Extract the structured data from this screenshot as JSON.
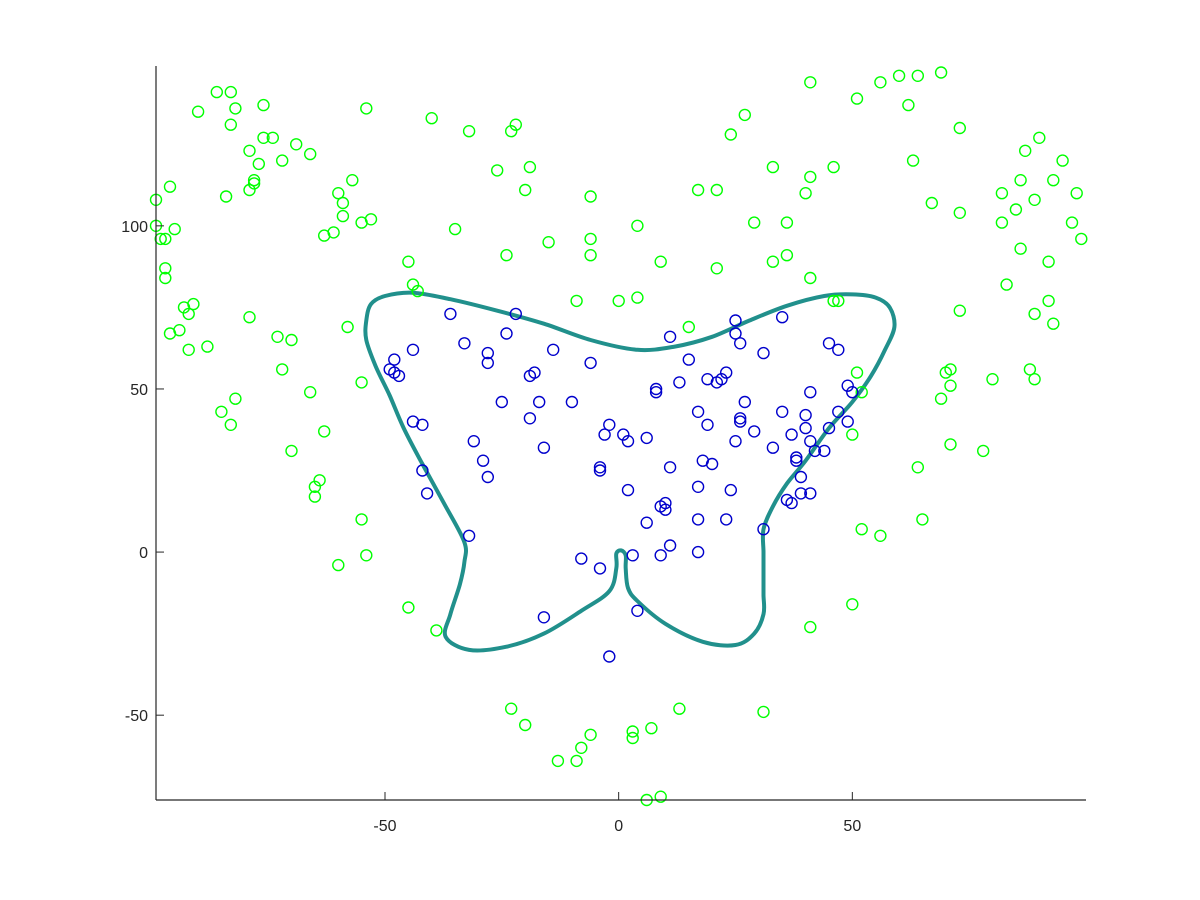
{
  "chart_data": {
    "type": "scatter",
    "title": "",
    "xlabel": "",
    "ylabel": "",
    "xlim": [
      -99,
      100
    ],
    "ylim": [
      -76,
      149
    ],
    "grid": false,
    "legend": "none",
    "xticks": [
      -50,
      0,
      50
    ],
    "yticks": [
      -50,
      0,
      50,
      100
    ],
    "xtick_labels": [
      "-50",
      "0",
      "50"
    ],
    "ytick_labels": [
      "-50",
      "0",
      "50",
      "100"
    ],
    "colors": {
      "outside": "#00ff00",
      "inside": "#0000cc",
      "boundary": "#21908c",
      "axis": "#262626"
    },
    "series": [
      {
        "marker": "circle-open",
        "color": "#00ff00",
        "points": [
          [
            -99,
            108
          ],
          [
            -99,
            100
          ],
          [
            -96,
            112
          ],
          [
            -98,
            96
          ],
          [
            -97,
            96
          ],
          [
            -95,
            99
          ],
          [
            -97,
            87
          ],
          [
            -97,
            84
          ],
          [
            -96,
            67
          ],
          [
            -94,
            68
          ],
          [
            -93,
            75
          ],
          [
            -91,
            76
          ],
          [
            -92,
            73
          ],
          [
            -92,
            62
          ],
          [
            -88,
            63
          ],
          [
            -90,
            135
          ],
          [
            -86,
            141
          ],
          [
            -83,
            141
          ],
          [
            -82,
            136
          ],
          [
            -83,
            131
          ],
          [
            -76,
            137
          ],
          [
            -76,
            127
          ],
          [
            -74,
            127
          ],
          [
            -79,
            123
          ],
          [
            -77,
            119
          ],
          [
            -72,
            120
          ],
          [
            -69,
            125
          ],
          [
            -84,
            109
          ],
          [
            -79,
            111
          ],
          [
            -78,
            113
          ],
          [
            -78,
            114
          ],
          [
            -66,
            122
          ],
          [
            -60,
            110
          ],
          [
            -59,
            107
          ],
          [
            -59,
            103
          ],
          [
            -57,
            114
          ],
          [
            -55,
            101
          ],
          [
            -53,
            102
          ],
          [
            -54,
            136
          ],
          [
            -82,
            47
          ],
          [
            -85,
            43
          ],
          [
            -83,
            39
          ],
          [
            -79,
            72
          ],
          [
            -73,
            66
          ],
          [
            -70,
            65
          ],
          [
            -72,
            56
          ],
          [
            -66,
            49
          ],
          [
            -70,
            31
          ],
          [
            -63,
            37
          ],
          [
            -65,
            20
          ],
          [
            -64,
            22
          ],
          [
            -65,
            17
          ],
          [
            -61,
            98
          ],
          [
            -63,
            97
          ],
          [
            -58,
            69
          ],
          [
            -55,
            52
          ],
          [
            -55,
            10
          ],
          [
            -54,
            -1
          ],
          [
            -60,
            -4
          ],
          [
            -45,
            -17
          ],
          [
            -39,
            -24
          ],
          [
            -43,
            80
          ],
          [
            -45,
            89
          ],
          [
            -44,
            82
          ],
          [
            -40,
            133
          ],
          [
            -32,
            129
          ],
          [
            -23,
            129
          ],
          [
            -22,
            131
          ],
          [
            -26,
            117
          ],
          [
            -19,
            118
          ],
          [
            -20,
            111
          ],
          [
            -35,
            99
          ],
          [
            -24,
            91
          ],
          [
            -15,
            95
          ],
          [
            -6,
            109
          ],
          [
            -6,
            96
          ],
          [
            -6,
            91
          ],
          [
            -9,
            77
          ],
          [
            0,
            77
          ],
          [
            4,
            78
          ],
          [
            4,
            100
          ],
          [
            9,
            89
          ],
          [
            15,
            69
          ],
          [
            17,
            111
          ],
          [
            21,
            111
          ],
          [
            21,
            87
          ],
          [
            24,
            128
          ],
          [
            27,
            134
          ],
          [
            29,
            101
          ],
          [
            33,
            118
          ],
          [
            33,
            89
          ],
          [
            36,
            101
          ],
          [
            36,
            91
          ],
          [
            40,
            110
          ],
          [
            41,
            115
          ],
          [
            46,
            118
          ],
          [
            41,
            144
          ],
          [
            51,
            139
          ],
          [
            56,
            144
          ],
          [
            60,
            146
          ],
          [
            64,
            146
          ],
          [
            69,
            147
          ],
          [
            62,
            137
          ],
          [
            63,
            120
          ],
          [
            67,
            107
          ],
          [
            73,
            104
          ],
          [
            73,
            130
          ],
          [
            46,
            77
          ],
          [
            47,
            77
          ],
          [
            41,
            84
          ],
          [
            51,
            55
          ],
          [
            52,
            49
          ],
          [
            50,
            36
          ],
          [
            52,
            7
          ],
          [
            56,
            5
          ],
          [
            64,
            26
          ],
          [
            65,
            10
          ],
          [
            69,
            47
          ],
          [
            70,
            55
          ],
          [
            71,
            56
          ],
          [
            71,
            51
          ],
          [
            71,
            33
          ],
          [
            73,
            74
          ],
          [
            78,
            31
          ],
          [
            80,
            53
          ],
          [
            82,
            110
          ],
          [
            82,
            101
          ],
          [
            83,
            82
          ],
          [
            85,
            105
          ],
          [
            86,
            93
          ],
          [
            86,
            114
          ],
          [
            87,
            123
          ],
          [
            89,
            108
          ],
          [
            89,
            73
          ],
          [
            88,
            56
          ],
          [
            89,
            53
          ],
          [
            90,
            127
          ],
          [
            92,
            89
          ],
          [
            92,
            77
          ],
          [
            93,
            70
          ],
          [
            93,
            114
          ],
          [
            95,
            120
          ],
          [
            97,
            101
          ],
          [
            98,
            110
          ],
          [
            99,
            96
          ],
          [
            41,
            -23
          ],
          [
            31,
            -49
          ],
          [
            50,
            -16
          ],
          [
            13,
            -48
          ],
          [
            -23,
            -48
          ],
          [
            -20,
            -53
          ],
          [
            -13,
            -64
          ],
          [
            -9,
            -64
          ],
          [
            -8,
            -60
          ],
          [
            -6,
            -56
          ],
          [
            3,
            -55
          ],
          [
            3,
            -57
          ],
          [
            7,
            -54
          ],
          [
            6,
            -76
          ],
          [
            9,
            -75
          ]
        ]
      },
      {
        "marker": "circle-open",
        "color": "#0000cc",
        "points": [
          [
            -36,
            73
          ],
          [
            -22,
            73
          ],
          [
            -48,
            59
          ],
          [
            -49,
            56
          ],
          [
            -48,
            55
          ],
          [
            -47,
            54
          ],
          [
            -44,
            62
          ],
          [
            -33,
            64
          ],
          [
            -28,
            61
          ],
          [
            -28,
            58
          ],
          [
            -24,
            67
          ],
          [
            -19,
            54
          ],
          [
            -18,
            55
          ],
          [
            -14,
            62
          ],
          [
            -6,
            58
          ],
          [
            -44,
            40
          ],
          [
            -42,
            39
          ],
          [
            -42,
            25
          ],
          [
            -41,
            18
          ],
          [
            -31,
            34
          ],
          [
            -29,
            28
          ],
          [
            -28,
            23
          ],
          [
            -25,
            46
          ],
          [
            -19,
            41
          ],
          [
            -17,
            46
          ],
          [
            -16,
            32
          ],
          [
            -10,
            46
          ],
          [
            -32,
            5
          ],
          [
            -8,
            -2
          ],
          [
            -4,
            -5
          ],
          [
            -4,
            25
          ],
          [
            -4,
            26
          ],
          [
            -3,
            36
          ],
          [
            -2,
            39
          ],
          [
            1,
            36
          ],
          [
            2,
            34
          ],
          [
            2,
            19
          ],
          [
            3,
            -1
          ],
          [
            4,
            -18
          ],
          [
            -2,
            -32
          ],
          [
            -16,
            -20
          ],
          [
            6,
            35
          ],
          [
            8,
            49
          ],
          [
            8,
            50
          ],
          [
            6,
            9
          ],
          [
            9,
            -1
          ],
          [
            9,
            14
          ],
          [
            10,
            13
          ],
          [
            10,
            15
          ],
          [
            11,
            26
          ],
          [
            11,
            2
          ],
          [
            11,
            66
          ],
          [
            13,
            52
          ],
          [
            15,
            59
          ],
          [
            17,
            43
          ],
          [
            17,
            20
          ],
          [
            17,
            10
          ],
          [
            17,
            0
          ],
          [
            18,
            28
          ],
          [
            19,
            53
          ],
          [
            19,
            39
          ],
          [
            20,
            27
          ],
          [
            21,
            52
          ],
          [
            22,
            53
          ],
          [
            23,
            55
          ],
          [
            23,
            10
          ],
          [
            24,
            19
          ],
          [
            25,
            71
          ],
          [
            25,
            67
          ],
          [
            25,
            34
          ],
          [
            26,
            64
          ],
          [
            26,
            41
          ],
          [
            26,
            40
          ],
          [
            27,
            46
          ],
          [
            29,
            37
          ],
          [
            31,
            61
          ],
          [
            31,
            7
          ],
          [
            33,
            32
          ],
          [
            35,
            43
          ],
          [
            35,
            72
          ],
          [
            36,
            16
          ],
          [
            37,
            15
          ],
          [
            37,
            36
          ],
          [
            38,
            29
          ],
          [
            38,
            28
          ],
          [
            39,
            23
          ],
          [
            39,
            18
          ],
          [
            40,
            42
          ],
          [
            40,
            38
          ],
          [
            41,
            18
          ],
          [
            41,
            49
          ],
          [
            41,
            34
          ],
          [
            42,
            31
          ],
          [
            44,
            31
          ],
          [
            45,
            38
          ],
          [
            45,
            64
          ],
          [
            47,
            62
          ],
          [
            47,
            43
          ],
          [
            49,
            40
          ],
          [
            49,
            51
          ],
          [
            50,
            49
          ]
        ]
      }
    ]
  }
}
